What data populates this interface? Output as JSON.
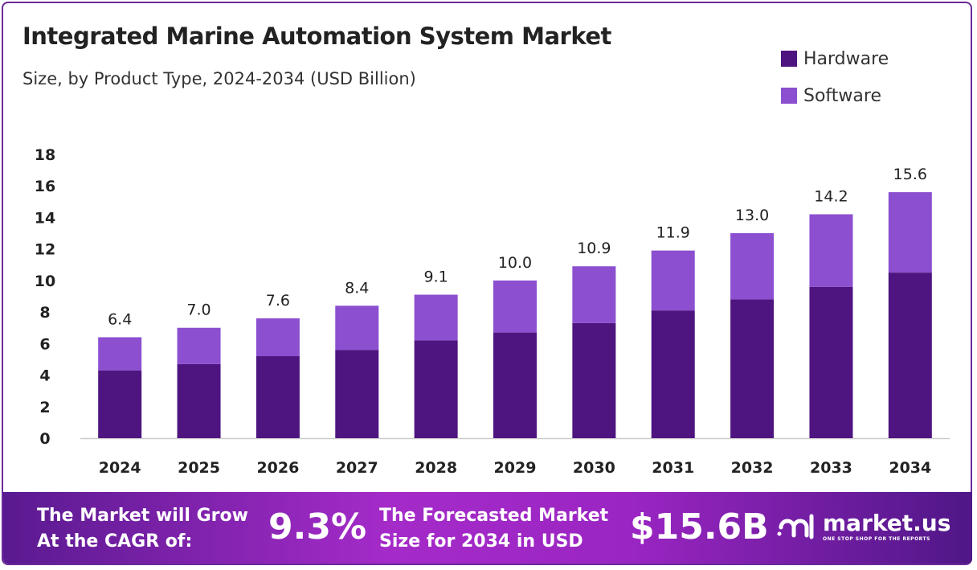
{
  "chart_data": {
    "type": "bar",
    "stacked": true,
    "title": "Integrated Marine Automation System Market",
    "subtitle": "Size, by Product Type, 2024-2034 (USD Billion)",
    "categories": [
      "2024",
      "2025",
      "2026",
      "2027",
      "2028",
      "2029",
      "2030",
      "2031",
      "2032",
      "2033",
      "2034"
    ],
    "series": [
      {
        "name": "Hardware",
        "color": "#4e1580",
        "values": [
          4.3,
          4.7,
          5.2,
          5.6,
          6.2,
          6.7,
          7.3,
          8.1,
          8.8,
          9.6,
          10.5
        ]
      },
      {
        "name": "Software",
        "color": "#8b4fd0",
        "values": [
          2.1,
          2.3,
          2.4,
          2.8,
          2.9,
          3.3,
          3.6,
          3.8,
          4.2,
          4.6,
          5.1
        ]
      }
    ],
    "totals": [
      "6.4",
      "7.0",
      "7.6",
      "8.4",
      "9.1",
      "10.0",
      "10.9",
      "11.9",
      "13.0",
      "14.2",
      "15.6"
    ],
    "yticks": [
      "0",
      "2",
      "4",
      "6",
      "8",
      "10",
      "12",
      "14",
      "16",
      "18"
    ],
    "ylim": [
      0,
      18
    ],
    "grid": false,
    "legend_position": "top-right"
  },
  "footer": {
    "cagr_label_1": "The Market will Grow",
    "cagr_label_2": "At the CAGR of:",
    "cagr_value": "9.3%",
    "forecast_label_1": "The Forecasted Market",
    "forecast_label_2": "Size for 2034 in USD",
    "forecast_value": "$15.6B",
    "logo_text": "market.us",
    "logo_tagline": "ONE STOP SHOP FOR THE REPORTS"
  }
}
